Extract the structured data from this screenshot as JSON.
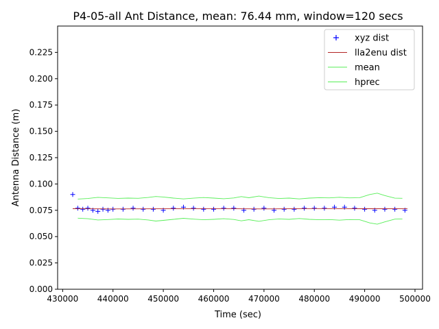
{
  "chart_data": {
    "type": "line",
    "title": "P4-05-all Ant Distance, mean: 76.44 mm, window=120 secs",
    "xlabel": "Time (sec)",
    "ylabel": "Antenna Distance (m)",
    "xlim": [
      429000,
      501500
    ],
    "ylim": [
      0.0,
      0.25
    ],
    "xticks": [
      430000,
      440000,
      450000,
      460000,
      470000,
      480000,
      490000,
      500000
    ],
    "xtick_labels": [
      "430000",
      "440000",
      "450000",
      "460000",
      "470000",
      "480000",
      "490000",
      "500000"
    ],
    "yticks": [
      0.0,
      0.025,
      0.05,
      0.075,
      0.1,
      0.125,
      0.15,
      0.175,
      0.2,
      0.225
    ],
    "ytick_labels": [
      "0.000",
      "0.025",
      "0.050",
      "0.075",
      "0.100",
      "0.125",
      "0.150",
      "0.175",
      "0.200",
      "0.225"
    ],
    "legend_position": "top-right",
    "grid": false,
    "series": [
      {
        "name": "xyz dist",
        "style": "plus-markers",
        "color": "#0000ff",
        "x": [
          432000,
          433000,
          434000,
          435000,
          436000,
          437000,
          438000,
          439000,
          440000,
          442000,
          444000,
          446000,
          448000,
          450000,
          452000,
          454000,
          456000,
          458000,
          460000,
          462000,
          464000,
          466000,
          468000,
          470000,
          472000,
          474000,
          476000,
          478000,
          480000,
          482000,
          484000,
          486000,
          488000,
          490000,
          492000,
          494000,
          496000,
          498000
        ],
        "y": [
          0.09,
          0.077,
          0.076,
          0.077,
          0.075,
          0.074,
          0.076,
          0.075,
          0.076,
          0.076,
          0.077,
          0.076,
          0.076,
          0.075,
          0.077,
          0.078,
          0.077,
          0.076,
          0.076,
          0.077,
          0.077,
          0.075,
          0.076,
          0.077,
          0.075,
          0.076,
          0.076,
          0.077,
          0.077,
          0.077,
          0.078,
          0.078,
          0.077,
          0.076,
          0.075,
          0.076,
          0.076,
          0.075
        ]
      },
      {
        "name": "lla2enu dist",
        "style": "line",
        "color": "#b22222",
        "x": [
          432000,
          440000,
          450000,
          460000,
          470000,
          480000,
          490000,
          498500
        ],
        "y": [
          0.0765,
          0.0763,
          0.0764,
          0.0766,
          0.0763,
          0.0766,
          0.0765,
          0.0764
        ]
      },
      {
        "name": "mean",
        "style": "line",
        "color": "#55ee55",
        "x": [
          433000,
          435000,
          437000,
          439000,
          441000,
          443000,
          445000,
          447000,
          448500,
          450000,
          452000,
          454000,
          456000,
          458000,
          460000,
          462000,
          464000,
          465500,
          467000,
          469000,
          471000,
          473000,
          475000,
          477000,
          479000,
          481000,
          483000,
          485000,
          487000,
          489000,
          491000,
          492500,
          494000,
          496000,
          497500
        ],
        "y": [
          0.0857,
          0.0862,
          0.0873,
          0.0868,
          0.0863,
          0.0866,
          0.0864,
          0.0872,
          0.0881,
          0.0876,
          0.0866,
          0.0858,
          0.0865,
          0.0871,
          0.0866,
          0.086,
          0.0867,
          0.088,
          0.0869,
          0.0885,
          0.087,
          0.0862,
          0.0866,
          0.0858,
          0.0866,
          0.087,
          0.0868,
          0.0874,
          0.0868,
          0.087,
          0.09,
          0.0913,
          0.089,
          0.0865,
          0.0864
        ]
      },
      {
        "name": "hprec",
        "style": "line",
        "color": "#55ee55",
        "x": [
          433000,
          435000,
          437000,
          439000,
          441000,
          443000,
          445000,
          447000,
          448500,
          450000,
          452000,
          454000,
          456000,
          458000,
          460000,
          462000,
          464000,
          465500,
          467000,
          469000,
          471000,
          473000,
          475000,
          477000,
          479000,
          481000,
          483000,
          485000,
          487000,
          489000,
          491000,
          492500,
          494000,
          496000,
          497500
        ],
        "y": [
          0.0675,
          0.067,
          0.0658,
          0.0662,
          0.0667,
          0.0664,
          0.0666,
          0.0658,
          0.0648,
          0.0654,
          0.0664,
          0.0674,
          0.0666,
          0.066,
          0.0664,
          0.067,
          0.0663,
          0.065,
          0.0661,
          0.0645,
          0.066,
          0.0668,
          0.0664,
          0.0672,
          0.0664,
          0.066,
          0.0662,
          0.0656,
          0.0662,
          0.066,
          0.063,
          0.0618,
          0.064,
          0.0666,
          0.0668
        ]
      }
    ]
  }
}
